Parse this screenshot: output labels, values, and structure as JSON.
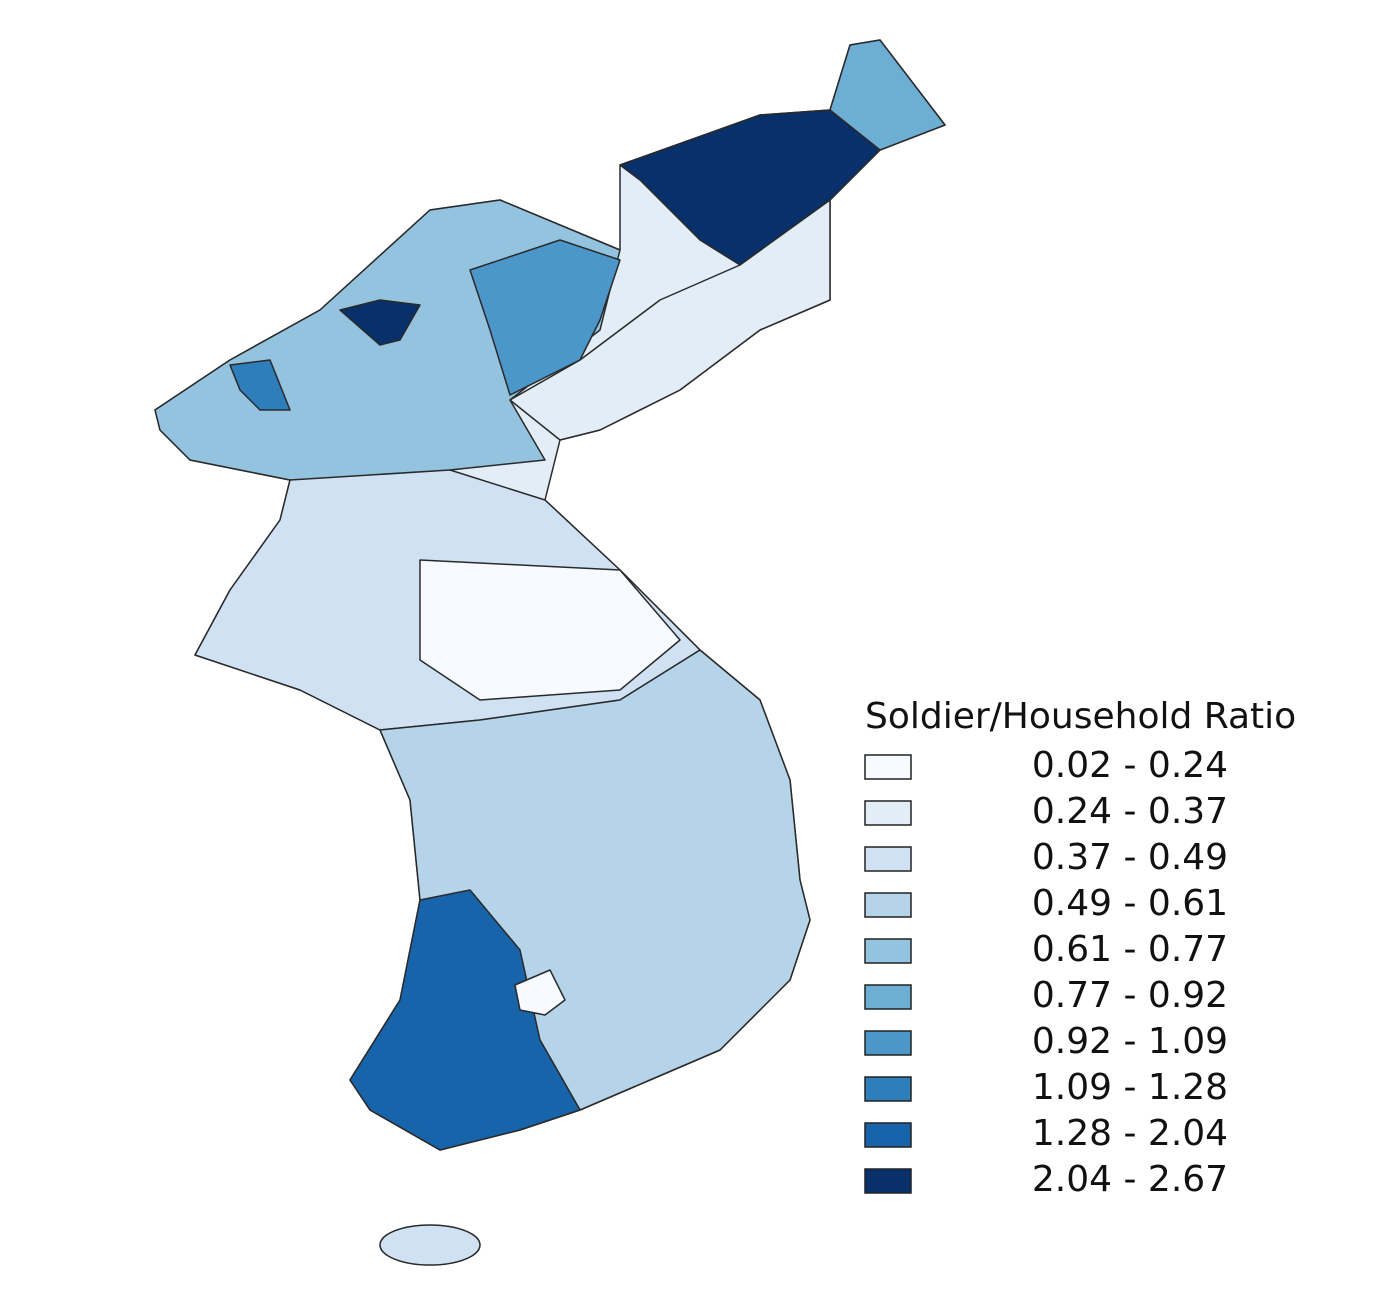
{
  "legend": {
    "title": "Soldier/Household Ratio",
    "items": [
      {
        "label": "0.02 - 0.24",
        "color": "#f7fbff"
      },
      {
        "label": "0.24 - 0.37",
        "color": "#e2edf8"
      },
      {
        "label": "0.37 - 0.49",
        "color": "#cfe1f2"
      },
      {
        "label": "0.49 - 0.61",
        "color": "#b5d4e9"
      },
      {
        "label": "0.61 - 0.77",
        "color": "#93c3df"
      },
      {
        "label": "0.77 - 0.92",
        "color": "#6daed5"
      },
      {
        "label": "0.92 - 1.09",
        "color": "#4b97c9"
      },
      {
        "label": "1.09 - 1.28",
        "color": "#2f7ebc"
      },
      {
        "label": "1.28 - 2.04",
        "color": "#1764ab"
      },
      {
        "label": "2.04 - 2.67",
        "color": "#08306b"
      }
    ]
  }
}
